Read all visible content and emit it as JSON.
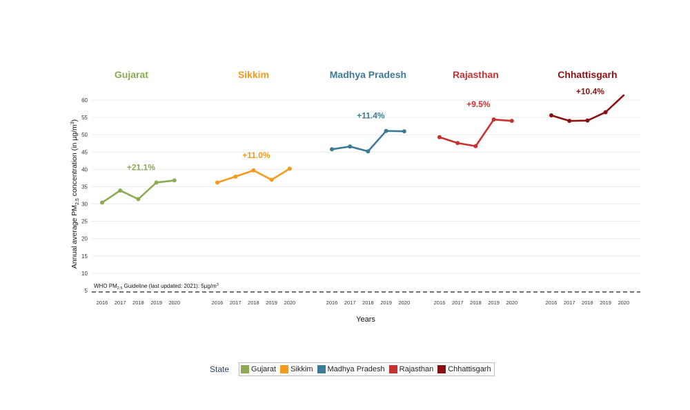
{
  "chart_data": {
    "type": "line",
    "panels": [
      {
        "name": "Gujarat",
        "color": "#8aab51",
        "change_label": "+21.1%",
        "x": [
          2016,
          2017,
          2018,
          2019,
          2020
        ],
        "y": [
          30.4,
          33.9,
          31.4,
          36.2,
          36.8
        ]
      },
      {
        "name": "Sikkim",
        "color": "#f59a1b",
        "change_label": "+11.0%",
        "x": [
          2016,
          2017,
          2018,
          2019,
          2020
        ],
        "y": [
          36.2,
          37.9,
          39.7,
          37.0,
          40.2
        ]
      },
      {
        "name": "Madhya Pradesh",
        "color": "#3b7b95",
        "change_label": "+11.4%",
        "x": [
          2016,
          2017,
          2018,
          2019,
          2020
        ],
        "y": [
          45.8,
          46.6,
          45.2,
          51.1,
          51.0
        ]
      },
      {
        "name": "Rajasthan",
        "color": "#c8312f",
        "change_label": "+9.5%",
        "x": [
          2016,
          2017,
          2018,
          2019,
          2020
        ],
        "y": [
          49.3,
          47.6,
          46.7,
          54.4,
          54.0
        ]
      },
      {
        "name": "Chhattisgarh",
        "color": "#8b1010",
        "change_label": "+10.4%",
        "x": [
          2016,
          2017,
          2018,
          2019,
          2020
        ],
        "y": [
          55.6,
          54.0,
          54.1,
          56.5,
          61.4
        ]
      }
    ],
    "ylabel": "Annual average PM2.5 concentration (in µg/m3)",
    "ylabel_parts": {
      "pre": "Annual average PM",
      "sub": "2.5",
      "mid": " concentration (in µg/m",
      "sup": "3",
      "post": ")"
    },
    "xlabel": "Years",
    "yticks": [
      5,
      10,
      15,
      20,
      25,
      30,
      35,
      40,
      45,
      50,
      55,
      60
    ],
    "ylim": [
      3,
      63
    ],
    "xticks": [
      "2016",
      "2017",
      "2018",
      "2019",
      "2020"
    ],
    "guideline": {
      "value": 5,
      "label_parts": {
        "pre": "WHO PM",
        "sub": "2.5",
        "mid": " Guideline (last updated: 2021): 5µg/m",
        "sup": "3"
      }
    },
    "legend": {
      "title": "State",
      "position": "bottom"
    }
  },
  "legend": {
    "title": "State",
    "items": [
      {
        "label": "Gujarat",
        "color": "#8aab51"
      },
      {
        "label": "Sikkim",
        "color": "#f59a1b"
      },
      {
        "label": "Madhya Pradesh",
        "color": "#3b7b95"
      },
      {
        "label": "Rajasthan",
        "color": "#c8312f"
      },
      {
        "label": "Chhattisgarh",
        "color": "#8b1010"
      }
    ]
  }
}
